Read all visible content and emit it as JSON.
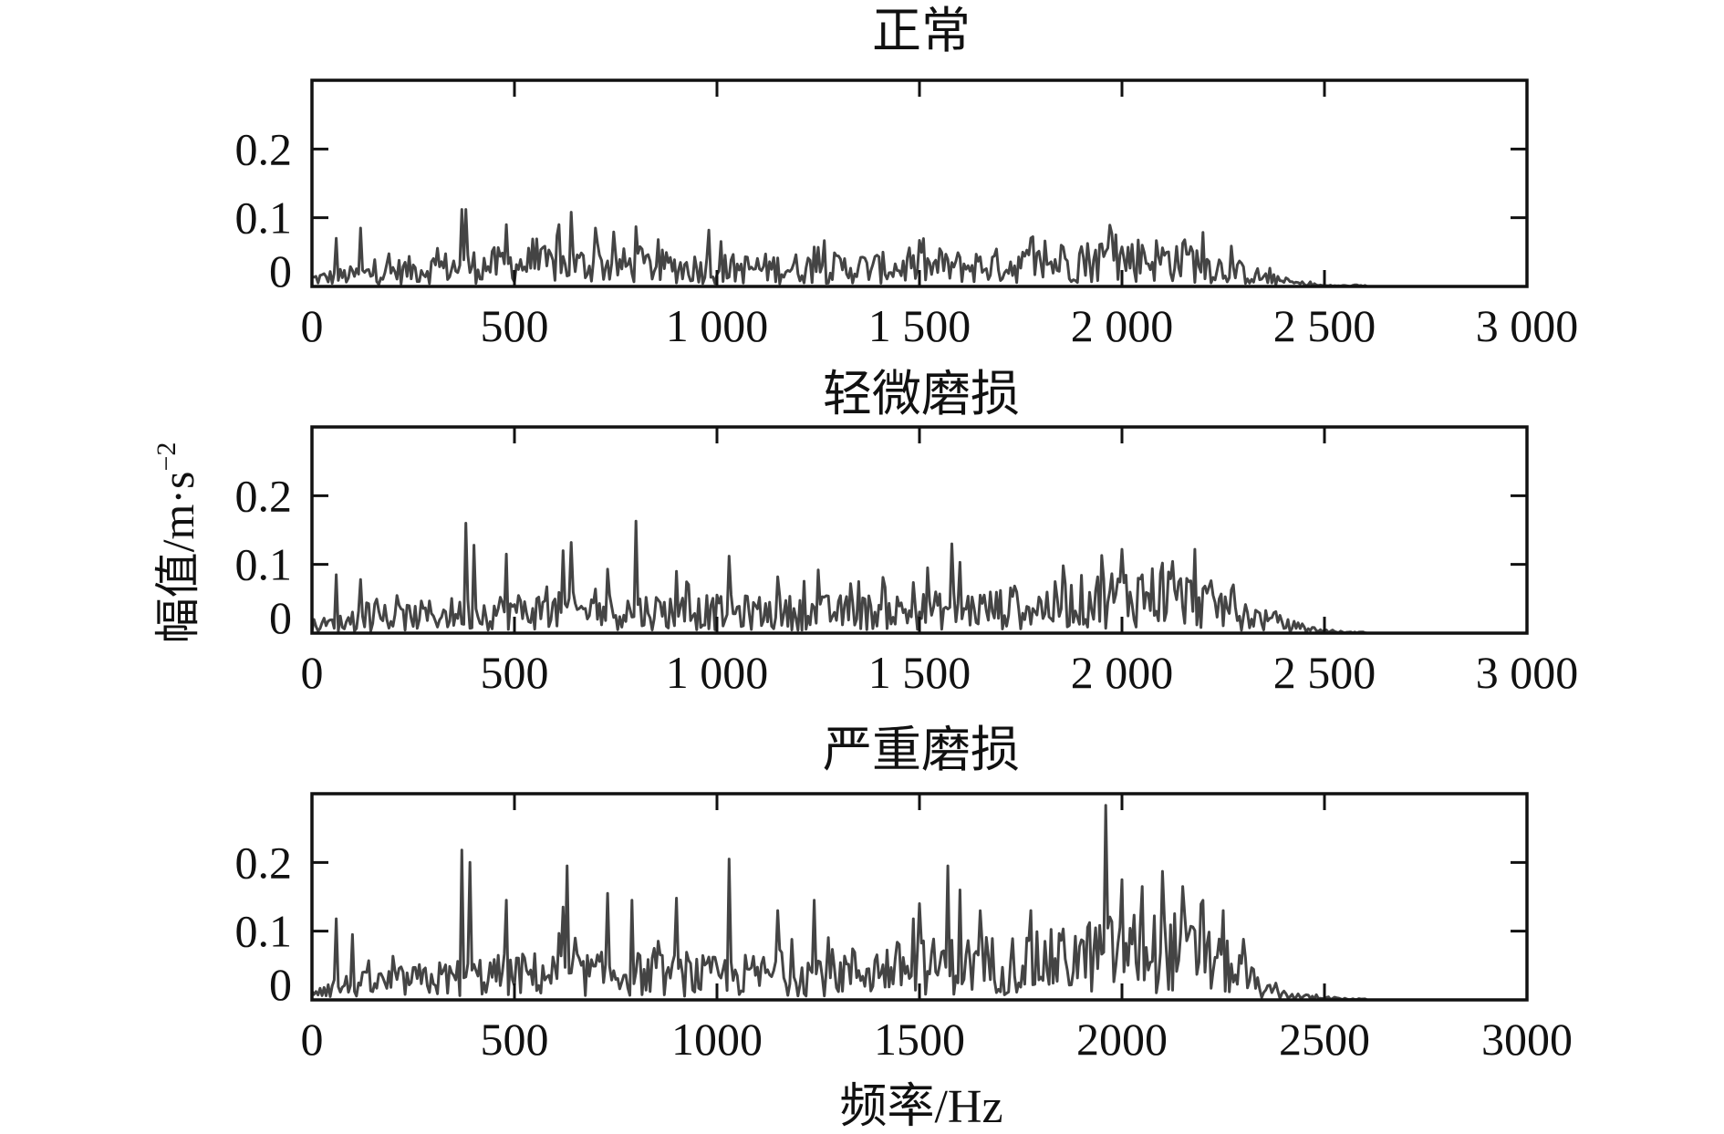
{
  "figure": {
    "xlabel": "频率/Hz",
    "ylabel": "幅值/m·s",
    "ylabel_sup": "−2",
    "line_color": "#444444",
    "axis_color": "#111111"
  },
  "chart_data": [
    {
      "type": "line",
      "title": "正常",
      "xlim": [
        0,
        3000
      ],
      "ylim": [
        0,
        0.3
      ],
      "xticks": [
        0,
        500,
        1000,
        1500,
        2000,
        2500,
        3000
      ],
      "xtick_labels": [
        "0",
        "500",
        "1 000",
        "1 500",
        "2 000",
        "2 500",
        "3 000"
      ],
      "yticks": [
        0,
        0.1,
        0.2
      ],
      "ytick_labels": [
        "0",
        "0.1",
        "0.2"
      ],
      "series": [
        {
          "x": [
            60,
            120,
            370,
            380,
            480,
            610,
            640,
            700,
            800,
            980,
            1250,
            1500,
            1550,
            1850,
            1900,
            1950,
            2050,
            2150,
            2170
          ],
          "y": [
            0.07,
            0.085,
            0.112,
            0.112,
            0.09,
            0.09,
            0.108,
            0.085,
            0.087,
            0.082,
            0.057,
            0.067,
            0.055,
            0.06,
            0.058,
            0.062,
            0.06,
            0.063,
            0.058
          ]
        }
      ],
      "envelope": [
        [
          0,
          0.01
        ],
        [
          300,
          0.025
        ],
        [
          500,
          0.03
        ],
        [
          800,
          0.028
        ],
        [
          1000,
          0.024
        ],
        [
          1250,
          0.025
        ],
        [
          1500,
          0.025
        ],
        [
          1800,
          0.03
        ],
        [
          2000,
          0.038
        ],
        [
          2150,
          0.036
        ],
        [
          2300,
          0.018
        ],
        [
          2400,
          0.006
        ],
        [
          2500,
          0.001
        ],
        [
          3000,
          0
        ]
      ]
    },
    {
      "type": "line",
      "title": "轻微磨损",
      "xlim": [
        0,
        3000
      ],
      "ylim": [
        0,
        0.3
      ],
      "xticks": [
        0,
        500,
        1000,
        1500,
        2000,
        2500,
        3000
      ],
      "xtick_labels": [
        "0",
        "500",
        "1 000",
        "1 500",
        "2 000",
        "2 500",
        "3 000"
      ],
      "yticks": [
        0,
        0.1,
        0.2
      ],
      "ytick_labels": [
        "0",
        "0.1",
        "0.2"
      ],
      "series": [
        {
          "x": [
            60,
            120,
            380,
            400,
            480,
            620,
            640,
            730,
            800,
            900,
            1030,
            1150,
            1250,
            1350,
            1520,
            1580,
            1600,
            1950,
            2000,
            2050,
            2100,
            2180
          ],
          "y": [
            0.085,
            0.078,
            0.16,
            0.128,
            0.115,
            0.12,
            0.132,
            0.093,
            0.163,
            0.09,
            0.112,
            0.082,
            0.092,
            0.075,
            0.095,
            0.13,
            0.103,
            0.113,
            0.122,
            0.085,
            0.102,
            0.122
          ]
        }
      ],
      "envelope": [
        [
          0,
          0.01
        ],
        [
          300,
          0.025
        ],
        [
          500,
          0.03
        ],
        [
          800,
          0.03
        ],
        [
          1000,
          0.028
        ],
        [
          1300,
          0.028
        ],
        [
          1500,
          0.03
        ],
        [
          1800,
          0.035
        ],
        [
          2000,
          0.05
        ],
        [
          2100,
          0.052
        ],
        [
          2250,
          0.035
        ],
        [
          2350,
          0.018
        ],
        [
          2450,
          0.006
        ],
        [
          2550,
          0.001
        ],
        [
          3000,
          0
        ]
      ]
    },
    {
      "type": "line",
      "title": "严重磨损",
      "xlim": [
        0,
        3000
      ],
      "ylim": [
        0,
        0.3
      ],
      "xticks": [
        0,
        500,
        1000,
        1500,
        2000,
        2500,
        3000
      ],
      "xtick_labels": [
        "0",
        "500",
        "1000",
        "1500",
        "2000",
        "2500",
        "3000"
      ],
      "yticks": [
        0,
        0.1,
        0.2
      ],
      "ytick_labels": [
        "0",
        "0.1",
        "0.2"
      ],
      "series": [
        {
          "x": [
            60,
            100,
            370,
            390,
            480,
            620,
            630,
            730,
            790,
            900,
            1030,
            1150,
            1240,
            1500,
            1570,
            1600,
            1960,
            2000,
            2050,
            2100,
            2150,
            2200,
            2250
          ],
          "y": [
            0.118,
            0.095,
            0.218,
            0.2,
            0.145,
            0.135,
            0.195,
            0.155,
            0.145,
            0.148,
            0.205,
            0.13,
            0.145,
            0.14,
            0.195,
            0.16,
            0.283,
            0.175,
            0.165,
            0.187,
            0.165,
            0.145,
            0.13
          ]
        }
      ],
      "envelope": [
        [
          0,
          0.015
        ],
        [
          300,
          0.028
        ],
        [
          500,
          0.035
        ],
        [
          800,
          0.035
        ],
        [
          1000,
          0.032
        ],
        [
          1300,
          0.038
        ],
        [
          1500,
          0.045
        ],
        [
          1800,
          0.05
        ],
        [
          2000,
          0.065
        ],
        [
          2150,
          0.065
        ],
        [
          2300,
          0.035
        ],
        [
          2350,
          0.012
        ],
        [
          2450,
          0.004
        ],
        [
          2560,
          0.001
        ],
        [
          3000,
          0
        ]
      ]
    }
  ]
}
